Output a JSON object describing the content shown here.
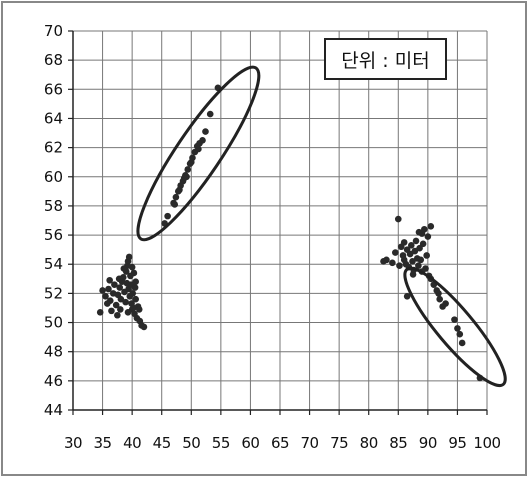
{
  "chart_data": {
    "type": "scatter",
    "title": "",
    "xlabel": "",
    "ylabel": "",
    "xlim": [
      30,
      100
    ],
    "ylim": [
      44,
      70
    ],
    "x_ticks": [
      30,
      35,
      40,
      45,
      50,
      55,
      60,
      65,
      70,
      75,
      80,
      85,
      90,
      95,
      100
    ],
    "x_tick_labels": [
      "30",
      "35",
      "40",
      "45",
      "50",
      "55",
      "60",
      "65",
      "70",
      "75",
      "80",
      "85",
      "90",
      "95",
      "100"
    ],
    "y_ticks": [
      44,
      46,
      48,
      50,
      52,
      54,
      56,
      58,
      60,
      62,
      64,
      66,
      68,
      70
    ],
    "y_tick_labels": [
      "44",
      "46",
      "48",
      "50",
      "52",
      "54",
      "56",
      "58",
      "60",
      "62",
      "64",
      "66",
      "68",
      "70"
    ],
    "grid": true,
    "annotation": "단위 : 미터",
    "annotation_position": "top-right",
    "series": [
      {
        "points": [
          [
            35.0,
            52.2
          ],
          [
            35.5,
            51.8
          ],
          [
            36.0,
            52.3
          ],
          [
            36.3,
            51.5
          ],
          [
            36.8,
            52.0
          ],
          [
            37.0,
            52.6
          ],
          [
            37.3,
            51.2
          ],
          [
            37.6,
            51.9
          ],
          [
            37.9,
            52.4
          ],
          [
            38.1,
            51.6
          ],
          [
            38.3,
            52.8
          ],
          [
            38.5,
            53.1
          ],
          [
            38.7,
            52.1
          ],
          [
            38.9,
            51.4
          ],
          [
            39.0,
            53.5
          ],
          [
            39.1,
            52.7
          ],
          [
            39.2,
            53.9
          ],
          [
            39.3,
            54.2
          ],
          [
            39.4,
            52.3
          ],
          [
            39.5,
            54.5
          ],
          [
            39.6,
            51.8
          ],
          [
            39.7,
            53.2
          ],
          [
            39.8,
            52.6
          ],
          [
            39.9,
            51.3
          ],
          [
            40.0,
            50.9
          ],
          [
            40.1,
            52.0
          ],
          [
            40.2,
            51.0
          ],
          [
            40.3,
            53.4
          ],
          [
            40.4,
            50.6
          ],
          [
            40.5,
            52.4
          ],
          [
            40.6,
            51.6
          ],
          [
            40.8,
            50.3
          ],
          [
            41.0,
            51.1
          ],
          [
            41.3,
            50.1
          ],
          [
            41.6,
            49.8
          ],
          [
            42.0,
            49.7
          ],
          [
            34.6,
            50.7
          ],
          [
            36.5,
            50.8
          ],
          [
            37.5,
            50.5
          ],
          [
            38.0,
            50.9
          ],
          [
            36.2,
            52.9
          ],
          [
            35.8,
            51.3
          ],
          [
            37.8,
            53.0
          ],
          [
            40.6,
            52.8
          ],
          [
            41.2,
            50.9
          ],
          [
            39.3,
            50.7
          ],
          [
            38.6,
            53.7
          ],
          [
            40.0,
            53.8
          ]
        ]
      },
      {
        "points": [
          [
            45.5,
            56.8
          ],
          [
            46.0,
            57.3
          ],
          [
            47.0,
            58.2
          ],
          [
            47.4,
            58.6
          ],
          [
            47.8,
            59.0
          ],
          [
            48.2,
            59.4
          ],
          [
            48.6,
            59.7
          ],
          [
            49.0,
            60.1
          ],
          [
            49.4,
            60.5
          ],
          [
            49.8,
            60.9
          ],
          [
            50.2,
            61.3
          ],
          [
            50.6,
            61.7
          ],
          [
            51.0,
            62.1
          ],
          [
            51.4,
            62.3
          ],
          [
            51.9,
            62.5
          ],
          [
            52.4,
            63.1
          ],
          [
            53.2,
            64.3
          ],
          [
            54.5,
            66.1
          ],
          [
            47.2,
            58.1
          ],
          [
            48.0,
            59.1
          ],
          [
            49.2,
            60.0
          ],
          [
            50.0,
            61.0
          ],
          [
            51.2,
            61.9
          ],
          [
            48.8,
            59.9
          ]
        ]
      },
      {
        "points": [
          [
            82.5,
            54.2
          ],
          [
            83.0,
            54.3
          ],
          [
            84.0,
            54.1
          ],
          [
            84.5,
            54.8
          ],
          [
            85.0,
            57.1
          ],
          [
            85.5,
            55.2
          ],
          [
            85.8,
            54.6
          ],
          [
            86.0,
            55.5
          ],
          [
            86.3,
            54.0
          ],
          [
            86.5,
            55.0
          ],
          [
            86.8,
            53.8
          ],
          [
            87.0,
            54.7
          ],
          [
            87.2,
            55.3
          ],
          [
            87.4,
            54.2
          ],
          [
            87.6,
            53.6
          ],
          [
            87.8,
            54.9
          ],
          [
            88.0,
            55.6
          ],
          [
            88.2,
            54.4
          ],
          [
            88.4,
            53.9
          ],
          [
            88.6,
            55.1
          ],
          [
            88.8,
            54.3
          ],
          [
            89.0,
            56.1
          ],
          [
            89.2,
            55.4
          ],
          [
            89.4,
            56.4
          ],
          [
            89.6,
            53.7
          ],
          [
            89.8,
            54.6
          ],
          [
            90.0,
            55.9
          ],
          [
            90.2,
            53.2
          ],
          [
            90.5,
            56.6
          ],
          [
            86.5,
            51.8
          ],
          [
            87.5,
            53.3
          ],
          [
            89.0,
            53.5
          ],
          [
            88.5,
            56.2
          ],
          [
            86.0,
            54.3
          ],
          [
            85.2,
            53.9
          ]
        ]
      },
      {
        "points": [
          [
            90.5,
            53.0
          ],
          [
            91.0,
            52.6
          ],
          [
            91.5,
            52.2
          ],
          [
            92.0,
            51.6
          ],
          [
            92.5,
            51.1
          ],
          [
            94.5,
            50.2
          ],
          [
            95.0,
            49.6
          ],
          [
            95.4,
            49.2
          ],
          [
            95.8,
            48.6
          ],
          [
            98.8,
            46.2
          ],
          [
            93.0,
            51.3
          ],
          [
            91.8,
            52.0
          ]
        ]
      }
    ],
    "ellipses": [
      {
        "cx": 51.2,
        "cy": 61.6,
        "rx_data": 14.0,
        "ry_data_angle_deg": 56,
        "note": ""
      },
      {
        "cx": 94.6,
        "cy": 49.7,
        "rx_data": 6.5,
        "ry_data_angle_deg": -50,
        "note": ""
      }
    ]
  }
}
